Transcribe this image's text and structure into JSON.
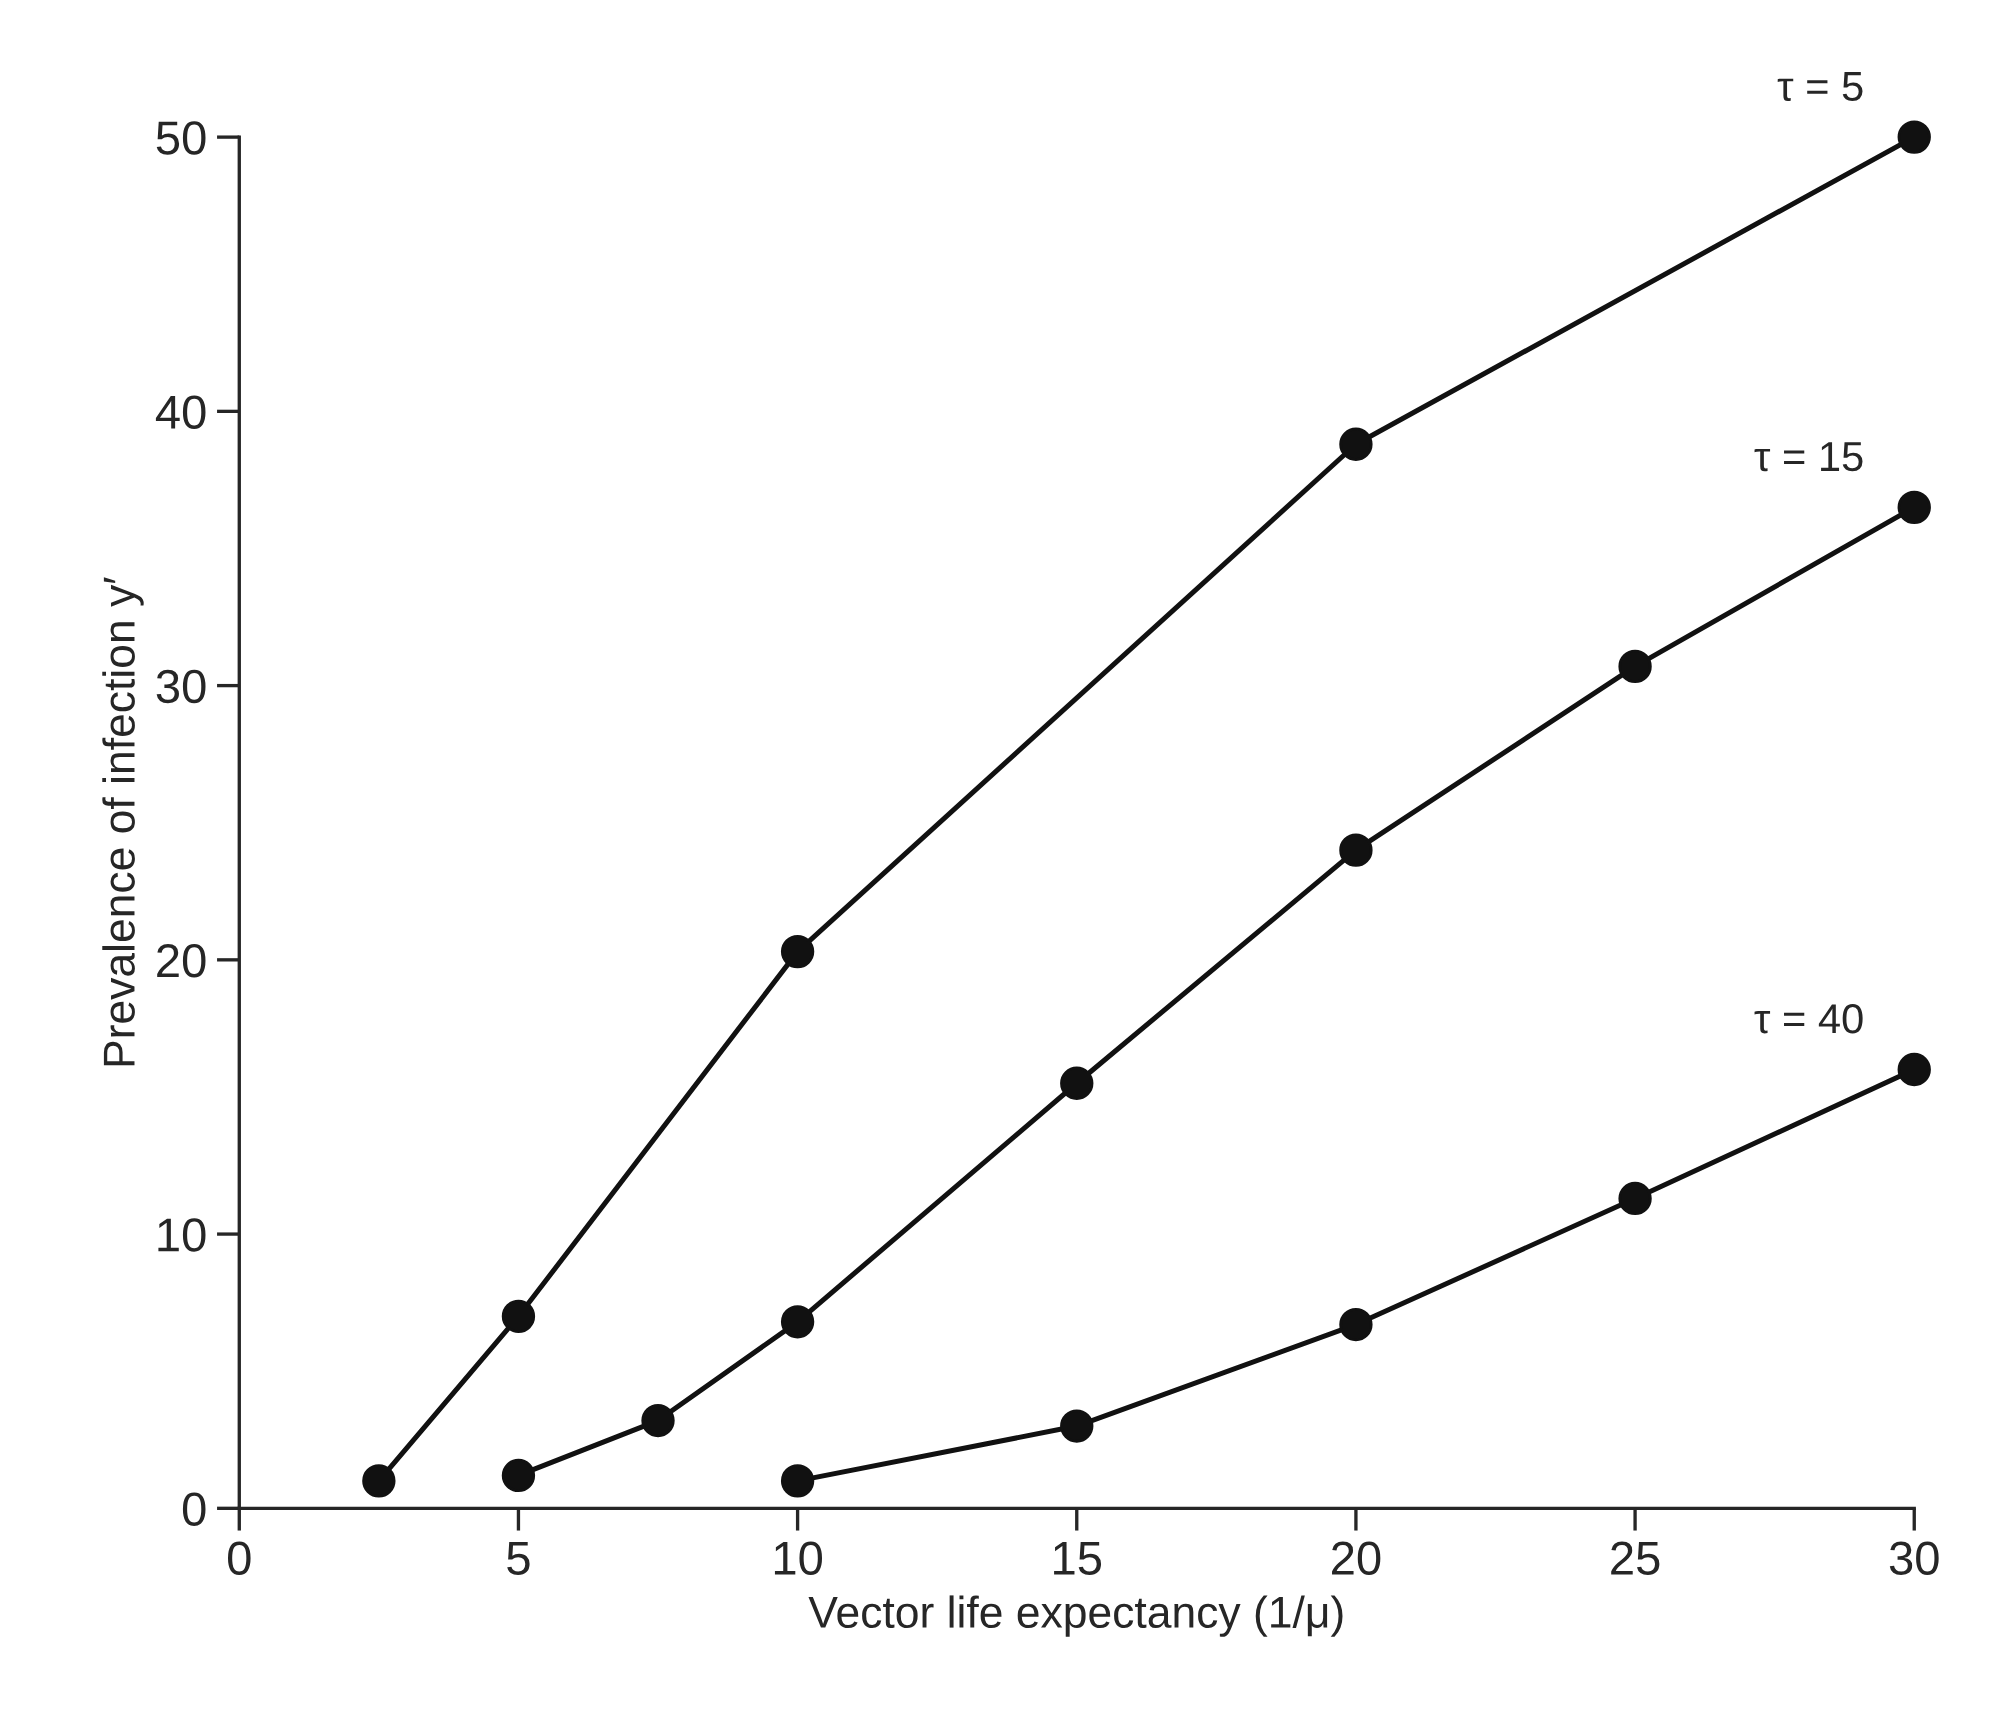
{
  "chart_data": {
    "type": "line",
    "xlabel": "Vector life expectancy (1/μ)",
    "ylabel": "Prevalence of infection y′",
    "xlim": [
      0,
      30
    ],
    "ylim": [
      0,
      50
    ],
    "xticks": [
      0,
      5,
      10,
      15,
      20,
      25,
      30
    ],
    "yticks": [
      0,
      10,
      20,
      30,
      40,
      50
    ],
    "grid": false,
    "legend": false,
    "marker": "circle",
    "line_style": "solid",
    "series": [
      {
        "name": "τ = 5",
        "color": "#111111",
        "x": [
          2.5,
          5,
          10,
          20,
          30
        ],
        "values": [
          1,
          7,
          20.3,
          38.8,
          50
        ]
      },
      {
        "name": "τ = 15",
        "color": "#111111",
        "x": [
          5,
          7.5,
          10,
          15,
          20,
          25,
          30
        ],
        "values": [
          1.2,
          3.2,
          6.8,
          15.5,
          24,
          30.7,
          36.5
        ]
      },
      {
        "name": "τ = 40",
        "color": "#111111",
        "x": [
          10,
          15,
          20,
          25,
          30
        ],
        "values": [
          1,
          3,
          6.7,
          11.3,
          16
        ]
      }
    ]
  }
}
